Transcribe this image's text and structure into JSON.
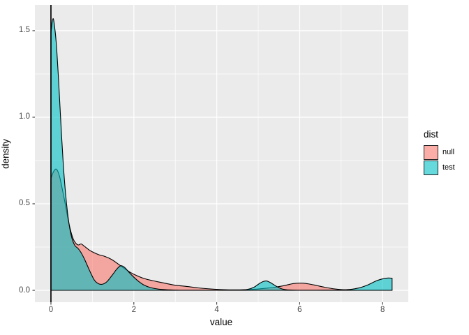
{
  "figure": {
    "background": "#ffffff",
    "panel_background": "#ebebeb",
    "grid_color": "#ffffff",
    "tick_label_color": "#4d4d4d",
    "outline_color": "#000000"
  },
  "legend": {
    "title": "dist",
    "entries": [
      {
        "label": "null",
        "color": "#F8766D"
      },
      {
        "label": "test",
        "color": "#00BFC4"
      }
    ],
    "fill_alpha": 0.6,
    "position": "right"
  },
  "chart_data": {
    "type": "area",
    "subtype": "density",
    "title": "",
    "xlabel": "value",
    "ylabel": "density",
    "xlim": [
      -0.387,
      8.62
    ],
    "ylim": [
      -0.0685,
      1.649
    ],
    "grid": "on",
    "legend_position": "right",
    "vline_x": 0,
    "x_ticks": {
      "values": [
        0,
        2,
        4,
        6,
        8
      ],
      "labels": [
        "0",
        "2",
        "4",
        "6",
        "8"
      ],
      "minor": [
        1,
        3,
        5,
        7
      ]
    },
    "y_ticks": {
      "values": [
        0,
        0.5,
        1.0,
        1.5
      ],
      "labels": [
        "0.0",
        "0.5",
        "1.0",
        "1.5"
      ],
      "minor": [
        0.25,
        0.75,
        1.25
      ]
    },
    "fill_alpha": 0.6,
    "series": [
      {
        "name": "null",
        "color": "#F8766D",
        "points": [
          [
            0,
            0.645
          ],
          [
            0.06,
            0.685
          ],
          [
            0.13,
            0.7
          ],
          [
            0.2,
            0.665
          ],
          [
            0.27,
            0.59
          ],
          [
            0.34,
            0.505
          ],
          [
            0.41,
            0.415
          ],
          [
            0.48,
            0.34
          ],
          [
            0.54,
            0.295
          ],
          [
            0.6,
            0.272
          ],
          [
            0.66,
            0.262
          ],
          [
            0.73,
            0.268
          ],
          [
            0.8,
            0.256
          ],
          [
            0.9,
            0.237
          ],
          [
            1.0,
            0.222
          ],
          [
            1.15,
            0.206
          ],
          [
            1.3,
            0.196
          ],
          [
            1.45,
            0.18
          ],
          [
            1.6,
            0.156
          ],
          [
            1.75,
            0.13
          ],
          [
            1.9,
            0.106
          ],
          [
            2.05,
            0.087
          ],
          [
            2.25,
            0.068
          ],
          [
            2.45,
            0.056
          ],
          [
            2.65,
            0.046
          ],
          [
            2.85,
            0.036
          ],
          [
            3.05,
            0.028
          ],
          [
            3.3,
            0.022
          ],
          [
            3.55,
            0.014
          ],
          [
            3.85,
            0.008
          ],
          [
            4.15,
            0.004
          ],
          [
            4.45,
            0.003
          ],
          [
            4.75,
            0.004
          ],
          [
            5.05,
            0.009
          ],
          [
            5.35,
            0.016
          ],
          [
            5.6,
            0.026
          ],
          [
            5.85,
            0.039
          ],
          [
            6.1,
            0.041
          ],
          [
            6.35,
            0.031
          ],
          [
            6.6,
            0.018
          ],
          [
            6.85,
            0.008
          ],
          [
            7.1,
            0.003
          ],
          [
            7.4,
            0.001
          ],
          [
            7.8,
            0.001
          ],
          [
            8.23,
            0.001
          ]
        ]
      },
      {
        "name": "test",
        "color": "#00BFC4",
        "points": [
          [
            0,
            1.49
          ],
          [
            0.05,
            1.57
          ],
          [
            0.1,
            1.5
          ],
          [
            0.14,
            1.39
          ],
          [
            0.18,
            1.23
          ],
          [
            0.22,
            1.05
          ],
          [
            0.26,
            0.88
          ],
          [
            0.3,
            0.72
          ],
          [
            0.35,
            0.565
          ],
          [
            0.4,
            0.45
          ],
          [
            0.46,
            0.35
          ],
          [
            0.52,
            0.29
          ],
          [
            0.58,
            0.258
          ],
          [
            0.65,
            0.243
          ],
          [
            0.72,
            0.22
          ],
          [
            0.8,
            0.185
          ],
          [
            0.88,
            0.142
          ],
          [
            0.96,
            0.1
          ],
          [
            1.05,
            0.058
          ],
          [
            1.15,
            0.038
          ],
          [
            1.25,
            0.036
          ],
          [
            1.35,
            0.05
          ],
          [
            1.47,
            0.085
          ],
          [
            1.58,
            0.12
          ],
          [
            1.68,
            0.142
          ],
          [
            1.78,
            0.132
          ],
          [
            1.88,
            0.105
          ],
          [
            2.0,
            0.076
          ],
          [
            2.12,
            0.051
          ],
          [
            2.25,
            0.03
          ],
          [
            2.4,
            0.016
          ],
          [
            2.6,
            0.007
          ],
          [
            2.85,
            0.003
          ],
          [
            3.2,
            0.001
          ],
          [
            3.7,
            0.001
          ],
          [
            4.2,
            0.001
          ],
          [
            4.55,
            0.002
          ],
          [
            4.75,
            0.006
          ],
          [
            4.9,
            0.018
          ],
          [
            5.02,
            0.038
          ],
          [
            5.12,
            0.051
          ],
          [
            5.2,
            0.054
          ],
          [
            5.3,
            0.044
          ],
          [
            5.42,
            0.026
          ],
          [
            5.55,
            0.01
          ],
          [
            5.7,
            0.003
          ],
          [
            5.95,
            0.001
          ],
          [
            6.4,
            0.001
          ],
          [
            6.9,
            0.002
          ],
          [
            7.2,
            0.005
          ],
          [
            7.45,
            0.015
          ],
          [
            7.65,
            0.032
          ],
          [
            7.85,
            0.055
          ],
          [
            8.0,
            0.066
          ],
          [
            8.12,
            0.071
          ],
          [
            8.23,
            0.07
          ]
        ]
      }
    ]
  }
}
